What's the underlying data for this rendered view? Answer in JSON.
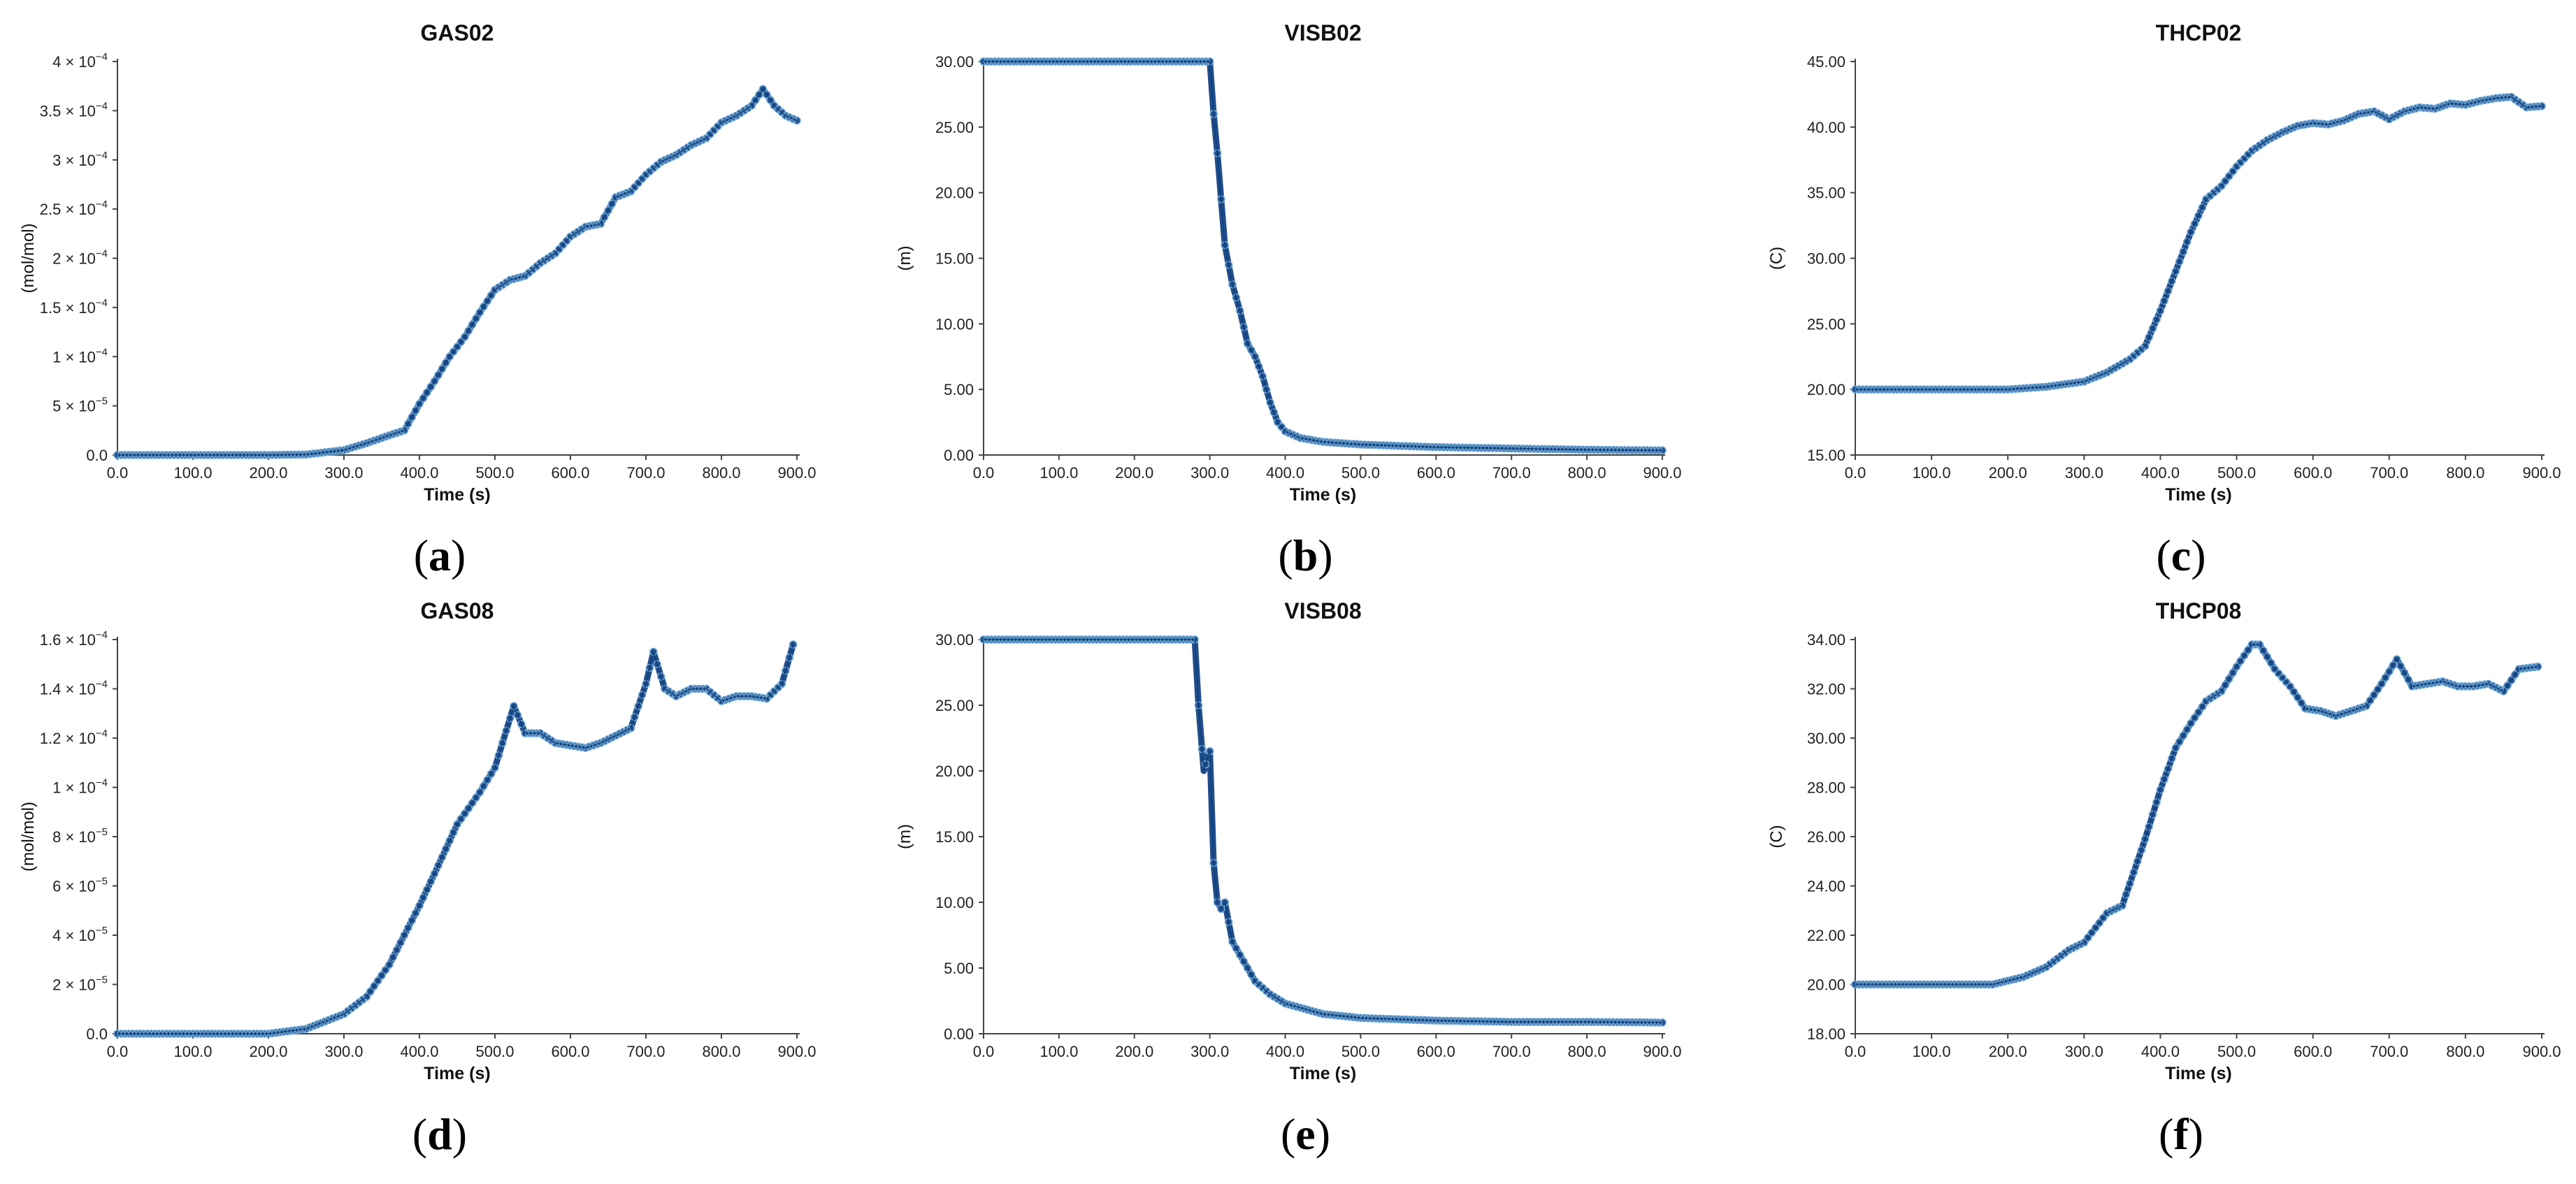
{
  "chart_data": [
    {
      "type": "line",
      "title": "GAS02",
      "xlabel": "Time (s)",
      "ylabel": "(mol/mol)",
      "panel": "b",
      "panel_label": {
        "open": "(",
        "letter": "a",
        "close": ")"
      },
      "xlim": [
        0,
        900
      ],
      "ylim": [
        0,
        0.0004
      ],
      "xticks": [
        "0.0",
        "100.0",
        "200.0",
        "300.0",
        "400.0",
        "500.0",
        "600.0",
        "700.0",
        "800.0",
        "900.0"
      ],
      "yticks": [
        {
          "v": 0,
          "m": "0.0",
          "e": ""
        },
        {
          "v": 5e-05,
          "m": "5 × 10",
          "e": "−5"
        },
        {
          "v": 0.0001,
          "m": "1 × 10",
          "e": "−4"
        },
        {
          "v": 0.00015,
          "m": "1.5 × 10",
          "e": "−4"
        },
        {
          "v": 0.0002,
          "m": "2 × 10",
          "e": "−4"
        },
        {
          "v": 0.00025,
          "m": "2.5 × 10",
          "e": "−4"
        },
        {
          "v": 0.0003,
          "m": "3 × 10",
          "e": "−4"
        },
        {
          "v": 0.00035,
          "m": "3.5 × 10",
          "e": "−4"
        },
        {
          "v": 0.0004,
          "m": "4 × 10",
          "e": "−4"
        }
      ],
      "x": [
        0,
        100,
        200,
        250,
        300,
        330,
        360,
        380,
        400,
        420,
        440,
        460,
        480,
        500,
        520,
        540,
        560,
        580,
        600,
        620,
        640,
        660,
        680,
        700,
        720,
        740,
        760,
        780,
        800,
        820,
        840,
        855,
        870,
        885,
        900
      ],
      "values": [
        0,
        0,
        0,
        5e-07,
        5e-06,
        1.2e-05,
        2e-05,
        2.5e-05,
        5.2e-05,
        7.5e-05,
        0.0001,
        0.00012,
        0.000145,
        0.000168,
        0.000178,
        0.000182,
        0.000195,
        0.000205,
        0.000222,
        0.000232,
        0.000235,
        0.000262,
        0.000268,
        0.000285,
        0.000298,
        0.000305,
        0.000315,
        0.000322,
        0.000338,
        0.000345,
        0.000355,
        0.000372,
        0.000355,
        0.000345,
        0.00034
      ]
    },
    {
      "type": "line",
      "title": "VISB02",
      "xlabel": "Time (s)",
      "ylabel": "(m)",
      "panel": "b",
      "panel_label": {
        "open": "(",
        "letter": "b",
        "close": ")"
      },
      "xlim": [
        0,
        900
      ],
      "ylim": [
        0,
        30
      ],
      "xticks": [
        "0.0",
        "100.0",
        "200.0",
        "300.0",
        "400.0",
        "500.0",
        "600.0",
        "700.0",
        "800.0",
        "900.0"
      ],
      "yticks": [
        {
          "v": 0,
          "m": "0.00"
        },
        {
          "v": 5,
          "m": "5.00"
        },
        {
          "v": 10,
          "m": "10.00"
        },
        {
          "v": 15,
          "m": "15.00"
        },
        {
          "v": 20,
          "m": "20.00"
        },
        {
          "v": 25,
          "m": "25.00"
        },
        {
          "v": 30,
          "m": "30.00"
        }
      ],
      "x": [
        0,
        100,
        200,
        295,
        300,
        305,
        310,
        320,
        330,
        340,
        350,
        360,
        370,
        380,
        390,
        400,
        420,
        450,
        500,
        600,
        700,
        800,
        900
      ],
      "values": [
        30,
        30,
        30,
        30,
        30,
        26,
        23,
        16,
        13,
        11,
        8.5,
        7.5,
        6,
        4,
        2.5,
        1.8,
        1.3,
        1.0,
        0.8,
        0.6,
        0.5,
        0.4,
        0.35
      ]
    },
    {
      "type": "line",
      "title": "THCP02",
      "xlabel": "Time (s)",
      "ylabel": "(C)",
      "panel": "b",
      "panel_label": {
        "open": "(",
        "letter": "c",
        "close": ")"
      },
      "xlim": [
        0,
        900
      ],
      "ylim": [
        15,
        45
      ],
      "xticks": [
        "0.0",
        "100.0",
        "200.0",
        "300.0",
        "400.0",
        "500.0",
        "600.0",
        "700.0",
        "800.0",
        "900.0"
      ],
      "yticks": [
        {
          "v": 15,
          "m": "15.00"
        },
        {
          "v": 20,
          "m": "20.00"
        },
        {
          "v": 25,
          "m": "25.00"
        },
        {
          "v": 30,
          "m": "30.00"
        },
        {
          "v": 35,
          "m": "35.00"
        },
        {
          "v": 40,
          "m": "40.00"
        },
        {
          "v": 45,
          "m": "45.00"
        }
      ],
      "x": [
        0,
        100,
        200,
        250,
        300,
        330,
        360,
        380,
        400,
        420,
        440,
        460,
        480,
        500,
        520,
        540,
        560,
        580,
        600,
        620,
        640,
        660,
        680,
        700,
        720,
        740,
        760,
        780,
        800,
        820,
        840,
        860,
        880,
        900
      ],
      "values": [
        20,
        20,
        20,
        20.2,
        20.6,
        21.3,
        22.3,
        23.3,
        26,
        29,
        32,
        34.5,
        35.5,
        37,
        38.2,
        39,
        39.6,
        40.1,
        40.3,
        40.2,
        40.5,
        41,
        41.2,
        40.6,
        41.2,
        41.5,
        41.4,
        41.8,
        41.7,
        42,
        42.2,
        42.3,
        41.5,
        41.6
      ]
    },
    {
      "type": "line",
      "title": "GAS08",
      "xlabel": "Time (s)",
      "ylabel": "(mol/mol)",
      "panel": "b",
      "panel_label": {
        "open": "(",
        "letter": "d",
        "close": ")"
      },
      "xlim": [
        0,
        900
      ],
      "ylim": [
        0,
        0.00016
      ],
      "xticks": [
        "0.0",
        "100.0",
        "200.0",
        "300.0",
        "400.0",
        "500.0",
        "600.0",
        "700.0",
        "800.0",
        "900.0"
      ],
      "yticks": [
        {
          "v": 0,
          "m": "0.0",
          "e": ""
        },
        {
          "v": 2e-05,
          "m": "2 × 10",
          "e": "−5"
        },
        {
          "v": 4e-05,
          "m": "4 × 10",
          "e": "−5"
        },
        {
          "v": 6e-05,
          "m": "6 × 10",
          "e": "−5"
        },
        {
          "v": 8e-05,
          "m": "8 × 10",
          "e": "−5"
        },
        {
          "v": 0.0001,
          "m": "1 × 10",
          "e": "−4"
        },
        {
          "v": 0.00012,
          "m": "1.2 × 10",
          "e": "−4"
        },
        {
          "v": 0.00014,
          "m": "1.4 × 10",
          "e": "−4"
        },
        {
          "v": 0.00016,
          "m": "1.6 × 10",
          "e": "−4"
        }
      ],
      "x": [
        0,
        100,
        200,
        250,
        300,
        330,
        360,
        400,
        420,
        450,
        480,
        500,
        510,
        525,
        540,
        560,
        580,
        600,
        620,
        640,
        660,
        680,
        700,
        710,
        725,
        740,
        760,
        780,
        800,
        820,
        840,
        860,
        880,
        895
      ],
      "values": [
        0,
        0,
        0,
        2e-06,
        8e-06,
        1.5e-05,
        2.8e-05,
        5.2e-05,
        6.5e-05,
        8.5e-05,
        9.8e-05,
        0.000108,
        0.000118,
        0.000133,
        0.000122,
        0.000122,
        0.000118,
        0.000117,
        0.000116,
        0.000118,
        0.000121,
        0.000124,
        0.000142,
        0.000155,
        0.00014,
        0.000137,
        0.00014,
        0.00014,
        0.000135,
        0.000137,
        0.000137,
        0.000136,
        0.000142,
        0.000158
      ]
    },
    {
      "type": "line",
      "title": "VISB08",
      "xlabel": "Time (s)",
      "ylabel": "(m)",
      "panel": "b",
      "panel_label": {
        "open": "(",
        "letter": "e",
        "close": ")"
      },
      "xlim": [
        0,
        900
      ],
      "ylim": [
        0,
        30
      ],
      "xticks": [
        "0.0",
        "100.0",
        "200.0",
        "300.0",
        "400.0",
        "500.0",
        "600.0",
        "700.0",
        "800.0",
        "900.0"
      ],
      "yticks": [
        {
          "v": 0,
          "m": "0.00"
        },
        {
          "v": 5,
          "m": "5.00"
        },
        {
          "v": 10,
          "m": "10.00"
        },
        {
          "v": 15,
          "m": "15.00"
        },
        {
          "v": 20,
          "m": "20.00"
        },
        {
          "v": 25,
          "m": "25.00"
        },
        {
          "v": 30,
          "m": "30.00"
        }
      ],
      "x": [
        0,
        100,
        200,
        280,
        285,
        292,
        300,
        305,
        310,
        315,
        320,
        330,
        340,
        350,
        360,
        380,
        400,
        450,
        500,
        600,
        700,
        800,
        900
      ],
      "values": [
        30,
        30,
        30,
        30,
        25,
        20,
        21.5,
        13,
        10,
        9.5,
        10,
        7,
        6,
        5,
        4,
        3,
        2.3,
        1.5,
        1.2,
        1.0,
        0.9,
        0.9,
        0.85
      ]
    },
    {
      "type": "line",
      "title": "THCP08",
      "xlabel": "Time (s)",
      "ylabel": "(C)",
      "panel": "b",
      "panel_label": {
        "open": "(",
        "letter": "f",
        "close": ")"
      },
      "xlim": [
        0,
        900
      ],
      "ylim": [
        18,
        34
      ],
      "xticks": [
        "0.0",
        "100.0",
        "200.0",
        "300.0",
        "400.0",
        "500.0",
        "600.0",
        "700.0",
        "800.0",
        "900.0"
      ],
      "yticks": [
        {
          "v": 18,
          "m": "18.00"
        },
        {
          "v": 20,
          "m": "20.00"
        },
        {
          "v": 22,
          "m": "22.00"
        },
        {
          "v": 24,
          "m": "24.00"
        },
        {
          "v": 26,
          "m": "26.00"
        },
        {
          "v": 28,
          "m": "28.00"
        },
        {
          "v": 30,
          "m": "30.00"
        },
        {
          "v": 32,
          "m": "32.00"
        },
        {
          "v": 34,
          "m": "34.00"
        }
      ],
      "x": [
        0,
        100,
        180,
        220,
        250,
        280,
        300,
        330,
        350,
        380,
        400,
        420,
        440,
        460,
        480,
        500,
        520,
        530,
        550,
        570,
        590,
        610,
        630,
        650,
        670,
        690,
        710,
        730,
        750,
        770,
        790,
        810,
        830,
        850,
        870,
        895
      ],
      "values": [
        20,
        20,
        20,
        20.3,
        20.7,
        21.4,
        21.7,
        22.9,
        23.2,
        25.9,
        27.9,
        29.6,
        30.6,
        31.5,
        31.9,
        32.9,
        33.8,
        33.8,
        32.8,
        32.1,
        31.2,
        31.1,
        30.9,
        31.1,
        31.3,
        32.2,
        33.2,
        32.1,
        32.2,
        32.3,
        32.1,
        32.1,
        32.2,
        31.9,
        32.8,
        32.9
      ]
    }
  ]
}
